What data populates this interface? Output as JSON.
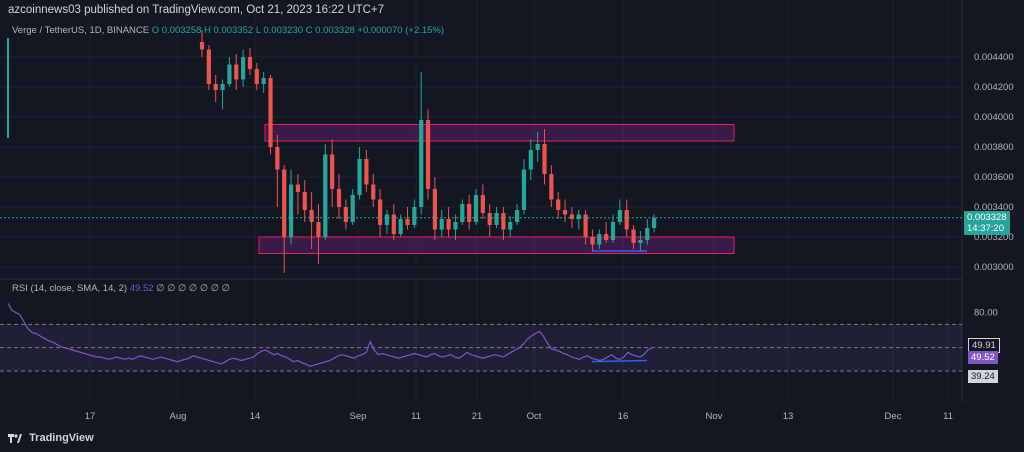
{
  "header": {
    "publisher_text": "azcoinnews03 published on TradingView.com, Oct 21, 2023 16:22 UTC+7"
  },
  "legend": {
    "symbol": "Verge / TetherUS, 1D, BINANCE",
    "open": "O 0.003258",
    "high": "H 0.003352",
    "low": "L 0.003230",
    "close": "C 0.003328",
    "change": "+0.000070 (+2.15%)"
  },
  "rsi_legend": {
    "label": "RSI (14, close, SMA, 14, 2)",
    "value": "49.52",
    "extras": "∅ ∅ ∅ ∅ ∅ ∅ ∅"
  },
  "price_tag": {
    "price": "0.003328",
    "countdown": "14:37:20"
  },
  "rsi_tags": [
    "49.91",
    "49.52",
    "39.24"
  ],
  "footer": {
    "brand": "TradingView"
  },
  "colors": {
    "up": "#26a69a",
    "down": "#ef5350",
    "rsi": "#7e57c2",
    "zone": "#e91e63",
    "trendline": "#2962ff"
  },
  "chart_data": {
    "type": "candlestick",
    "symbol": "Verge / TetherUS",
    "interval": "1D",
    "exchange": "BINANCE",
    "price_axis": {
      "ticks": [
        "0.004400",
        "0.004200",
        "0.004000",
        "0.003800",
        "0.003600",
        "0.003400",
        "0.003200",
        "0.003000"
      ],
      "range": [
        0.00294,
        0.00458
      ]
    },
    "x_axis": {
      "ticks": [
        "17",
        "Aug",
        "14",
        "Sep",
        "11",
        "21",
        "Oct",
        "16",
        "Nov",
        "13",
        "Dec",
        "11"
      ]
    },
    "candles": [
      {
        "o": 0.0045,
        "h": 0.00458,
        "l": 0.0044,
        "c": 0.00445
      },
      {
        "o": 0.00445,
        "h": 0.00448,
        "l": 0.00418,
        "c": 0.00422
      },
      {
        "o": 0.00422,
        "h": 0.00428,
        "l": 0.0041,
        "c": 0.00418
      },
      {
        "o": 0.00418,
        "h": 0.00425,
        "l": 0.00405,
        "c": 0.00422
      },
      {
        "o": 0.00422,
        "h": 0.0044,
        "l": 0.0042,
        "c": 0.00435
      },
      {
        "o": 0.00435,
        "h": 0.00442,
        "l": 0.00418,
        "c": 0.00425
      },
      {
        "o": 0.00425,
        "h": 0.00445,
        "l": 0.0042,
        "c": 0.0044
      },
      {
        "o": 0.0044,
        "h": 0.00446,
        "l": 0.00428,
        "c": 0.00432
      },
      {
        "o": 0.00432,
        "h": 0.00436,
        "l": 0.00418,
        "c": 0.00422
      },
      {
        "o": 0.00422,
        "h": 0.0043,
        "l": 0.00416,
        "c": 0.00426
      },
      {
        "o": 0.00426,
        "h": 0.00428,
        "l": 0.00375,
        "c": 0.0038
      },
      {
        "o": 0.0038,
        "h": 0.00388,
        "l": 0.0034,
        "c": 0.00365
      },
      {
        "o": 0.00365,
        "h": 0.00368,
        "l": 0.00296,
        "c": 0.0032
      },
      {
        "o": 0.0032,
        "h": 0.00365,
        "l": 0.00315,
        "c": 0.00355
      },
      {
        "o": 0.00355,
        "h": 0.00362,
        "l": 0.00335,
        "c": 0.0035
      },
      {
        "o": 0.0035,
        "h": 0.00358,
        "l": 0.0033,
        "c": 0.00338
      },
      {
        "o": 0.00338,
        "h": 0.0035,
        "l": 0.00312,
        "c": 0.0033
      },
      {
        "o": 0.0033,
        "h": 0.00342,
        "l": 0.00302,
        "c": 0.0032
      },
      {
        "o": 0.0032,
        "h": 0.00382,
        "l": 0.00318,
        "c": 0.00375
      },
      {
        "o": 0.00375,
        "h": 0.00385,
        "l": 0.0034,
        "c": 0.00352
      },
      {
        "o": 0.00352,
        "h": 0.00362,
        "l": 0.00332,
        "c": 0.0034
      },
      {
        "o": 0.0034,
        "h": 0.00345,
        "l": 0.00325,
        "c": 0.0033
      },
      {
        "o": 0.0033,
        "h": 0.00352,
        "l": 0.00328,
        "c": 0.00348
      },
      {
        "o": 0.00348,
        "h": 0.0038,
        "l": 0.00345,
        "c": 0.00372
      },
      {
        "o": 0.00372,
        "h": 0.00378,
        "l": 0.0035,
        "c": 0.00355
      },
      {
        "o": 0.00355,
        "h": 0.00362,
        "l": 0.0034,
        "c": 0.00345
      },
      {
        "o": 0.00345,
        "h": 0.00352,
        "l": 0.0032,
        "c": 0.00328
      },
      {
        "o": 0.00328,
        "h": 0.00338,
        "l": 0.00322,
        "c": 0.00335
      },
      {
        "o": 0.00335,
        "h": 0.00342,
        "l": 0.00318,
        "c": 0.00322
      },
      {
        "o": 0.00322,
        "h": 0.00335,
        "l": 0.0032,
        "c": 0.00332
      },
      {
        "o": 0.00332,
        "h": 0.0034,
        "l": 0.00325,
        "c": 0.00328
      },
      {
        "o": 0.00328,
        "h": 0.00345,
        "l": 0.00326,
        "c": 0.0034
      },
      {
        "o": 0.0034,
        "h": 0.0043,
        "l": 0.00335,
        "c": 0.00398
      },
      {
        "o": 0.00398,
        "h": 0.00405,
        "l": 0.00345,
        "c": 0.00352
      },
      {
        "o": 0.00352,
        "h": 0.0036,
        "l": 0.00318,
        "c": 0.00325
      },
      {
        "o": 0.00325,
        "h": 0.00338,
        "l": 0.0032,
        "c": 0.00332
      },
      {
        "o": 0.00332,
        "h": 0.0034,
        "l": 0.0032,
        "c": 0.00325
      },
      {
        "o": 0.00325,
        "h": 0.00335,
        "l": 0.00318,
        "c": 0.0033
      },
      {
        "o": 0.0033,
        "h": 0.00345,
        "l": 0.00328,
        "c": 0.00342
      },
      {
        "o": 0.00342,
        "h": 0.00348,
        "l": 0.00325,
        "c": 0.0033
      },
      {
        "o": 0.0033,
        "h": 0.00352,
        "l": 0.00328,
        "c": 0.00348
      },
      {
        "o": 0.00348,
        "h": 0.00355,
        "l": 0.00332,
        "c": 0.00336
      },
      {
        "o": 0.00336,
        "h": 0.00342,
        "l": 0.0032,
        "c": 0.00328
      },
      {
        "o": 0.00328,
        "h": 0.0034,
        "l": 0.00326,
        "c": 0.00336
      },
      {
        "o": 0.00336,
        "h": 0.0034,
        "l": 0.00318,
        "c": 0.00325
      },
      {
        "o": 0.00325,
        "h": 0.00334,
        "l": 0.0032,
        "c": 0.0033
      },
      {
        "o": 0.0033,
        "h": 0.00342,
        "l": 0.00328,
        "c": 0.00338
      },
      {
        "o": 0.00338,
        "h": 0.00372,
        "l": 0.00335,
        "c": 0.00365
      },
      {
        "o": 0.00365,
        "h": 0.00385,
        "l": 0.00358,
        "c": 0.00378
      },
      {
        "o": 0.00378,
        "h": 0.0039,
        "l": 0.0037,
        "c": 0.00382
      },
      {
        "o": 0.00382,
        "h": 0.00392,
        "l": 0.00355,
        "c": 0.00362
      },
      {
        "o": 0.00362,
        "h": 0.00368,
        "l": 0.0034,
        "c": 0.00345
      },
      {
        "o": 0.00345,
        "h": 0.0035,
        "l": 0.00332,
        "c": 0.00338
      },
      {
        "o": 0.00338,
        "h": 0.00345,
        "l": 0.0033,
        "c": 0.00335
      },
      {
        "o": 0.00335,
        "h": 0.0034,
        "l": 0.00326,
        "c": 0.00332
      },
      {
        "o": 0.00332,
        "h": 0.00338,
        "l": 0.00325,
        "c": 0.00335
      },
      {
        "o": 0.00335,
        "h": 0.00338,
        "l": 0.00315,
        "c": 0.0032
      },
      {
        "o": 0.0032,
        "h": 0.00325,
        "l": 0.0031,
        "c": 0.00315
      },
      {
        "o": 0.00315,
        "h": 0.00325,
        "l": 0.00312,
        "c": 0.00322
      },
      {
        "o": 0.00322,
        "h": 0.0033,
        "l": 0.00316,
        "c": 0.00318
      },
      {
        "o": 0.00318,
        "h": 0.00335,
        "l": 0.00316,
        "c": 0.0033
      },
      {
        "o": 0.0033,
        "h": 0.00345,
        "l": 0.00328,
        "c": 0.00338
      },
      {
        "o": 0.00338,
        "h": 0.00345,
        "l": 0.0032,
        "c": 0.00325
      },
      {
        "o": 0.00325,
        "h": 0.00328,
        "l": 0.00312,
        "c": 0.00316
      },
      {
        "o": 0.00316,
        "h": 0.00324,
        "l": 0.0031,
        "c": 0.00318
      },
      {
        "o": 0.00318,
        "h": 0.00332,
        "l": 0.00315,
        "c": 0.00326
      },
      {
        "o": 0.00326,
        "h": 0.00335,
        "l": 0.00323,
        "c": 0.00333
      }
    ],
    "annotations": [
      {
        "type": "zone",
        "from": "Aug 14",
        "to": "Nov 2",
        "top": 0.00395,
        "bottom": 0.00388
      },
      {
        "type": "zone",
        "from": "Aug 14",
        "to": "Nov 2",
        "top": 0.0032,
        "bottom": 0.00313
      },
      {
        "type": "line",
        "points": [
          [
            0.00311,
            "Oct 10"
          ],
          [
            0.00311,
            "Oct 20"
          ]
        ]
      }
    ],
    "rsi": {
      "label": "RSI (14, close, SMA, 14, 2)",
      "range": [
        0,
        100
      ],
      "axis_ticks": [
        "80.00"
      ],
      "band": [
        70,
        30
      ],
      "mid": 50,
      "values": [
        88,
        82,
        80,
        78,
        72,
        66,
        63,
        62,
        60,
        58,
        56,
        55,
        53,
        51,
        50,
        49,
        48,
        47,
        46,
        45,
        44,
        43,
        42,
        42,
        41,
        40,
        41,
        42,
        41,
        40,
        41,
        40,
        42,
        43,
        42,
        41,
        40,
        41,
        42,
        41,
        40,
        39,
        38,
        39,
        40,
        41,
        43,
        42,
        41,
        40,
        39,
        38,
        37,
        36,
        38,
        40,
        41,
        40,
        39,
        40,
        41,
        42,
        45,
        47,
        48,
        46,
        44,
        45,
        43,
        42,
        40,
        38,
        39,
        37,
        36,
        34,
        35,
        36,
        37,
        38,
        39,
        41,
        43,
        44,
        43,
        42,
        41,
        43,
        44,
        46,
        55,
        48,
        44,
        45,
        44,
        43,
        42,
        41,
        42,
        43,
        44,
        45,
        44,
        43,
        42,
        44,
        45,
        43,
        42,
        43,
        44,
        42,
        41,
        43,
        46,
        44,
        43,
        42,
        41,
        42,
        43,
        44,
        43,
        42,
        44,
        46,
        48,
        50,
        53,
        57,
        60,
        62,
        64,
        60,
        54,
        49,
        48,
        47,
        45,
        44,
        42,
        41,
        40,
        42,
        43,
        41,
        40,
        39,
        40,
        42,
        44,
        41,
        40,
        42,
        46,
        44,
        43,
        42,
        44,
        48,
        50
      ],
      "trendline": {
        "from": 38,
        "to": 39
      }
    }
  }
}
